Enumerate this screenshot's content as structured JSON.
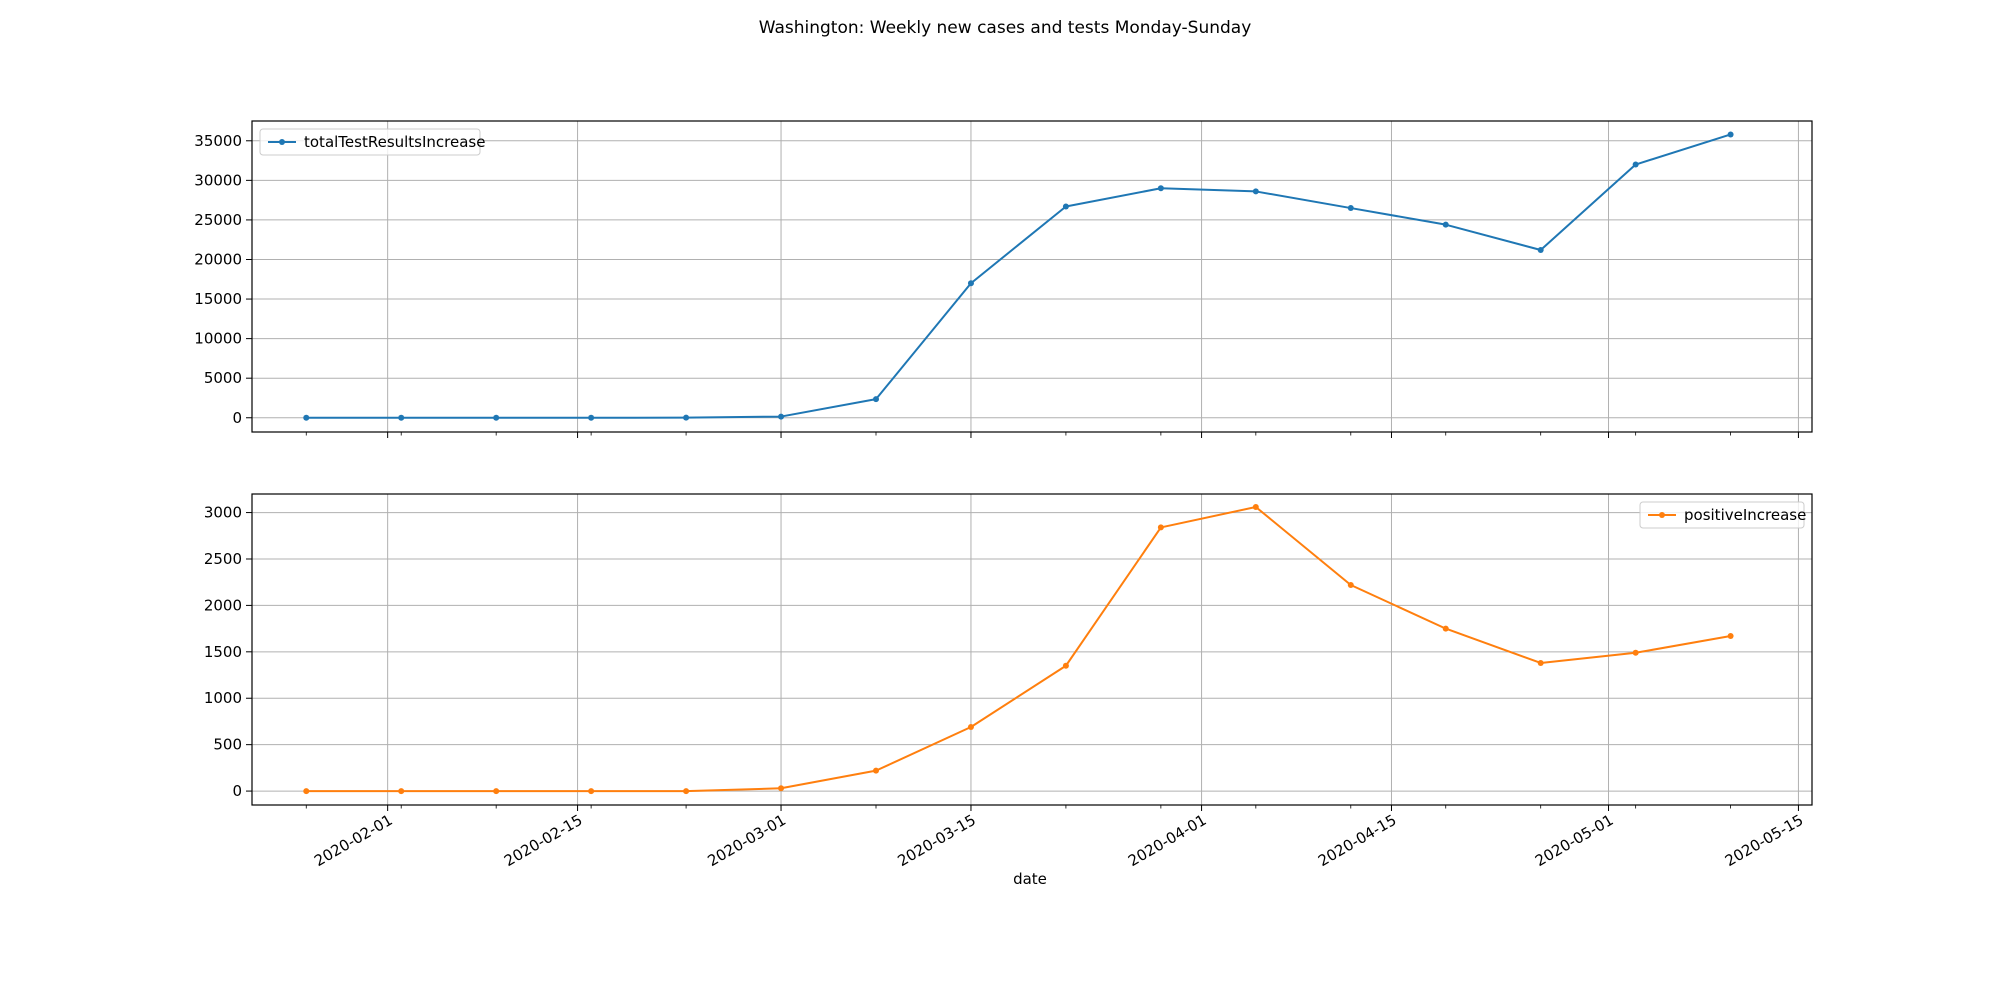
{
  "figure": {
    "title": "Washington: Weekly new cases and tests Monday-Sunday"
  },
  "chart_data": [
    {
      "type": "line",
      "title": "",
      "xlabel": "",
      "ylabel": "",
      "xlim": [
        "2020-01-22",
        "2020-05-16"
      ],
      "ylim": [
        -1800,
        37500
      ],
      "yticks": [
        0,
        5000,
        10000,
        15000,
        20000,
        25000,
        30000,
        35000
      ],
      "xticks": [
        "2020-02-01",
        "2020-02-15",
        "2020-03-01",
        "2020-03-15",
        "2020-04-01",
        "2020-04-15",
        "2020-05-01",
        "2020-05-15"
      ],
      "grid": true,
      "legend_position": "upper left",
      "x": [
        "2020-01-26",
        "2020-02-02",
        "2020-02-09",
        "2020-02-16",
        "2020-02-23",
        "2020-03-01",
        "2020-03-08",
        "2020-03-15",
        "2020-03-22",
        "2020-03-29",
        "2020-04-05",
        "2020-04-12",
        "2020-04-19",
        "2020-04-26",
        "2020-05-03",
        "2020-05-10"
      ],
      "series": [
        {
          "name": "totalTestResultsIncrease",
          "color": "#1f77b4",
          "values": [
            0,
            0,
            0,
            0,
            10,
            150,
            2350,
            17000,
            26700,
            29000,
            28600,
            26500,
            24400,
            21200,
            32000,
            35800
          ]
        }
      ]
    },
    {
      "type": "line",
      "title": "",
      "xlabel": "date",
      "ylabel": "",
      "xlim": [
        "2020-01-22",
        "2020-05-16"
      ],
      "ylim": [
        -150,
        3200
      ],
      "yticks": [
        0,
        500,
        1000,
        1500,
        2000,
        2500,
        3000
      ],
      "xticks": [
        "2020-02-01",
        "2020-02-15",
        "2020-03-01",
        "2020-03-15",
        "2020-04-01",
        "2020-04-15",
        "2020-05-01",
        "2020-05-15"
      ],
      "grid": true,
      "legend_position": "upper right",
      "x": [
        "2020-01-26",
        "2020-02-02",
        "2020-02-09",
        "2020-02-16",
        "2020-02-23",
        "2020-03-01",
        "2020-03-08",
        "2020-03-15",
        "2020-03-22",
        "2020-03-29",
        "2020-04-05",
        "2020-04-12",
        "2020-04-19",
        "2020-04-26",
        "2020-05-03",
        "2020-05-10"
      ],
      "series": [
        {
          "name": "positiveIncrease",
          "color": "#ff7f0e",
          "values": [
            0,
            0,
            0,
            0,
            0,
            30,
            220,
            690,
            1350,
            2840,
            3060,
            2220,
            1750,
            1380,
            1490,
            1670
          ]
        }
      ]
    }
  ]
}
